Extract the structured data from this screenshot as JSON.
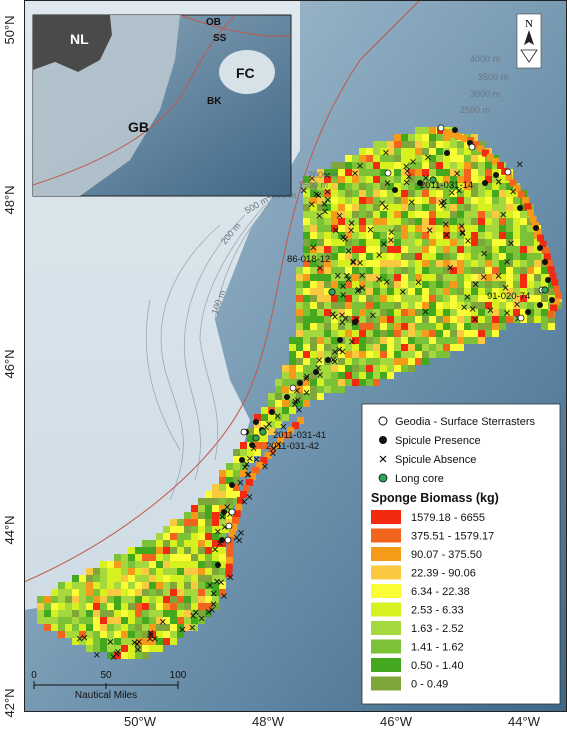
{
  "axes": {
    "lat_labels": [
      "50°N",
      "48°N",
      "46°N",
      "44°N",
      "42°N"
    ],
    "lon_labels": [
      "50°W",
      "48°W",
      "46°W",
      "44°W"
    ]
  },
  "contours": [
    "4000 m",
    "3500 m",
    "3000 m",
    "2500 m",
    "2000 m",
    "1500 m",
    "1000 m",
    "500 m",
    "200 m",
    "100 m"
  ],
  "inset": {
    "labels": [
      "NL",
      "GB",
      "FC",
      "OB",
      "SS",
      "BK"
    ]
  },
  "core_labels": [
    "2011-031-14",
    "86-018-12",
    "91-020-74",
    "2011-031-41",
    "2011-031-42"
  ],
  "north_arrow": "N",
  "legend": {
    "symbols": [
      {
        "label": "Geodia - Surface Sterrasters",
        "icon": "open-circle"
      },
      {
        "label": "Spicule Presence",
        "icon": "filled-circle"
      },
      {
        "label": "Spicule Absence",
        "icon": "x-mark"
      },
      {
        "label": "Long core",
        "icon": "green-circle"
      }
    ],
    "biomass_title": "Sponge Biomass (kg)",
    "classes": [
      {
        "label": "1579.18 - 6655",
        "color": "#f22a0f"
      },
      {
        "label": "375.51 - 1579.17",
        "color": "#f2641d"
      },
      {
        "label": "90.07 - 375.50",
        "color": "#f59a19"
      },
      {
        "label": "22.39 - 90.06",
        "color": "#fbc940"
      },
      {
        "label": "6.34 - 22.38",
        "color": "#fafc35"
      },
      {
        "label": "2.53 - 6.33",
        "color": "#d7f01f"
      },
      {
        "label": "1.63 - 2.52",
        "color": "#a5d83c"
      },
      {
        "label": "1.41 - 1.62",
        "color": "#7cc236"
      },
      {
        "label": "0.50 - 1.40",
        "color": "#43a81e"
      },
      {
        "label": "0 - 0.49",
        "color": "#7fa63a"
      }
    ]
  },
  "scale_bar": {
    "ticks": [
      "0",
      "50",
      "100"
    ],
    "unit": "Nautical Miles"
  }
}
